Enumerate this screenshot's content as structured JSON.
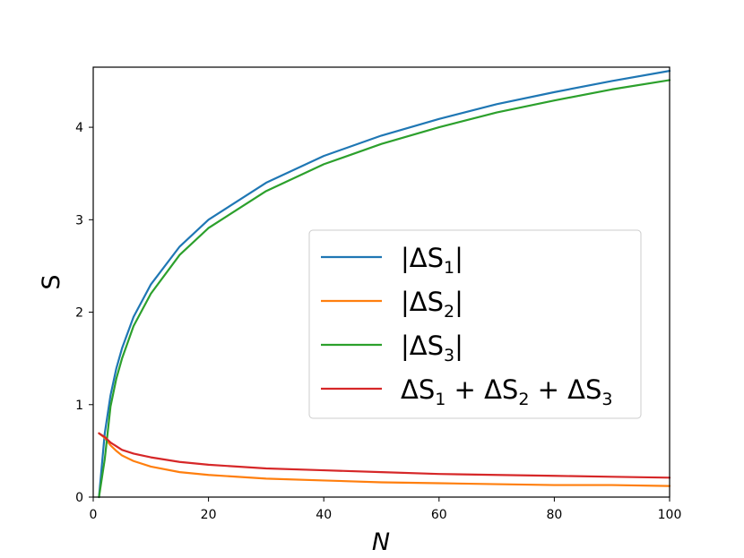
{
  "chart_data": {
    "type": "line",
    "title": "",
    "xlabel": "N",
    "ylabel": "S",
    "xlim": [
      0,
      100
    ],
    "ylim": [
      0,
      4.65
    ],
    "xticks": [
      0,
      20,
      40,
      60,
      80,
      100
    ],
    "yticks": [
      0,
      1,
      2,
      3,
      4
    ],
    "grid": false,
    "legend_position": "center-right",
    "x": [
      1,
      2,
      3,
      4,
      5,
      7,
      10,
      15,
      20,
      30,
      40,
      50,
      60,
      70,
      80,
      90,
      100
    ],
    "series": [
      {
        "name": "|ΔS1|",
        "legend": {
          "pre": "|ΔS",
          "sub": "1",
          "post": "|"
        },
        "color": "#1f77b4",
        "values": [
          0.0,
          0.69,
          1.1,
          1.39,
          1.61,
          1.95,
          2.3,
          2.71,
          3.0,
          3.4,
          3.69,
          3.91,
          4.09,
          4.25,
          4.38,
          4.5,
          4.61
        ]
      },
      {
        "name": "|ΔS2|",
        "legend": {
          "pre": "|ΔS",
          "sub": "2",
          "post": "|"
        },
        "color": "#ff7f0e",
        "values": [
          0.69,
          0.64,
          0.56,
          0.5,
          0.45,
          0.39,
          0.33,
          0.27,
          0.24,
          0.2,
          0.18,
          0.16,
          0.15,
          0.14,
          0.13,
          0.13,
          0.12
        ]
      },
      {
        "name": "|ΔS3|",
        "legend": {
          "pre": "|ΔS",
          "sub": "3",
          "post": "|"
        },
        "color": "#2ca02c",
        "values": [
          0.0,
          0.41,
          0.98,
          1.28,
          1.5,
          1.85,
          2.2,
          2.62,
          2.91,
          3.31,
          3.6,
          3.82,
          4.0,
          4.16,
          4.29,
          4.41,
          4.51
        ]
      },
      {
        "name": "ΔS1 + ΔS2 + ΔS3",
        "legend": {
          "parts": [
            {
              "t": "ΔS"
            },
            {
              "sub": "1"
            },
            {
              "t": " + ΔS"
            },
            {
              "sub": "2"
            },
            {
              "t": " + ΔS"
            },
            {
              "sub": "3"
            }
          ]
        },
        "color": "#d62728",
        "values": [
          0.69,
          0.65,
          0.59,
          0.55,
          0.51,
          0.47,
          0.43,
          0.38,
          0.35,
          0.31,
          0.29,
          0.27,
          0.25,
          0.24,
          0.23,
          0.22,
          0.21
        ]
      }
    ]
  }
}
